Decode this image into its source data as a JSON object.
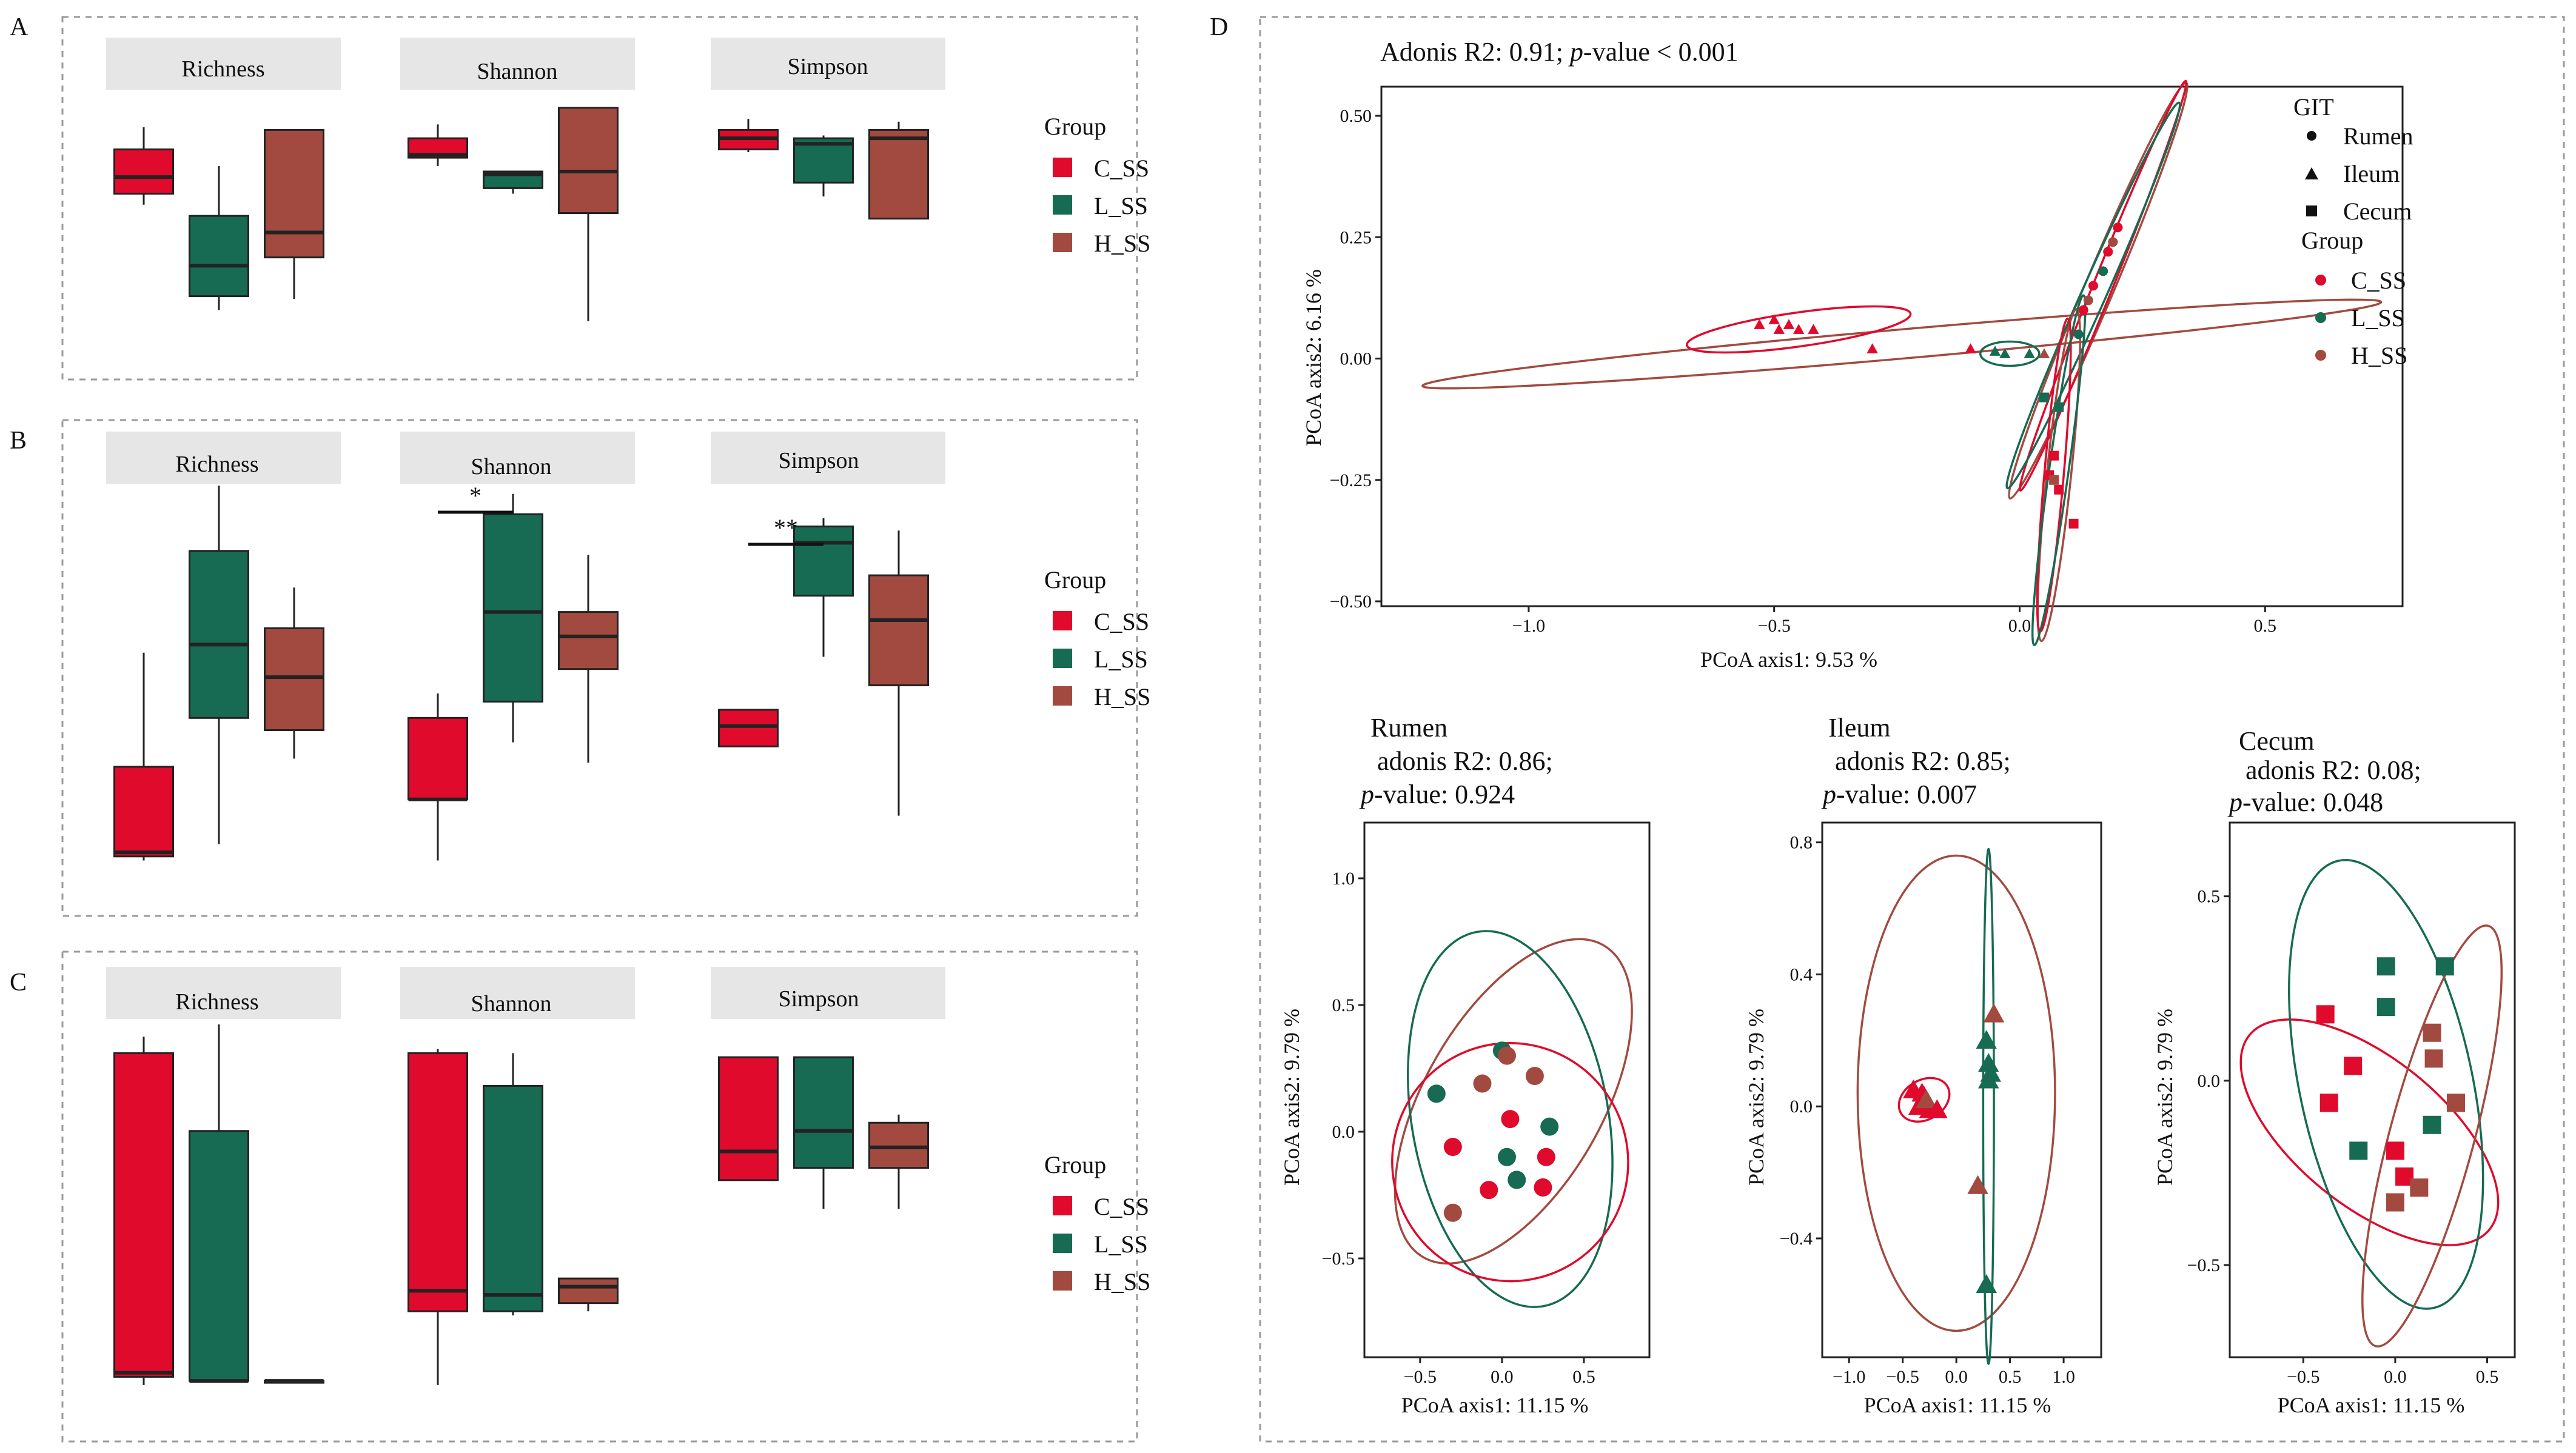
{
  "colors": {
    "C_SS": "#df0a2c",
    "L_SS": "#166b52",
    "H_SS": "#a24a40",
    "strip": "#e6e6e6",
    "frame": "#9a9a9a"
  },
  "panel_labels": [
    "A",
    "B",
    "C",
    "D"
  ],
  "legend": {
    "title": "Group",
    "groups": [
      "C_SS",
      "L_SS",
      "H_SS"
    ],
    "git_title": "GIT",
    "git": [
      "Rumen",
      "Ileum",
      "Cecum"
    ]
  },
  "chart_data": [
    {
      "type": "box",
      "panel": "A",
      "facets": [
        "Richness",
        "Shannon",
        "Simpson"
      ],
      "groups": [
        "C_SS",
        "L_SS",
        "H_SS"
      ],
      "note": "values in relative (unlabeled) axis units, 0 = bottom, 100 = top of facet",
      "boxes": [
        [
          {
            "min": 60,
            "q1": 64,
            "med": 70,
            "q3": 80,
            "max": 88
          },
          {
            "min": 22,
            "q1": 27,
            "med": 38,
            "q3": 56,
            "max": 74
          },
          {
            "min": 26,
            "q1": 41,
            "med": 50,
            "q3": 87,
            "max": 87
          }
        ],
        [
          {
            "min": 74,
            "q1": 77,
            "med": 78,
            "q3": 84,
            "max": 89
          },
          {
            "min": 64,
            "q1": 66,
            "med": 71,
            "q3": 72,
            "max": 72
          },
          {
            "min": 18,
            "q1": 57,
            "med": 72,
            "q3": 95,
            "max": 95
          }
        ],
        [
          {
            "min": 79,
            "q1": 80,
            "med": 84,
            "q3": 87,
            "max": 91
          },
          {
            "min": 63,
            "q1": 68,
            "med": 82,
            "q3": 84,
            "max": 85
          },
          {
            "min": 55,
            "q1": 55,
            "med": 84,
            "q3": 87,
            "max": 90
          }
        ]
      ],
      "significance": []
    },
    {
      "type": "box",
      "panel": "B",
      "facets": [
        "Richness",
        "Shannon",
        "Simpson"
      ],
      "groups": [
        "C_SS",
        "L_SS",
        "H_SS"
      ],
      "note": "values in relative (unlabeled) axis units, 0 = bottom, 100 = top of facet",
      "boxes": [
        [
          {
            "min": 9,
            "q1": 10,
            "med": 11,
            "q3": 32,
            "max": 60
          },
          {
            "min": 13,
            "q1": 44,
            "med": 62,
            "q3": 85,
            "max": 101
          },
          {
            "min": 34,
            "q1": 41,
            "med": 54,
            "q3": 66,
            "max": 76
          }
        ],
        [
          {
            "min": 9,
            "q1": 24,
            "med": 24,
            "q3": 44,
            "max": 50
          },
          {
            "min": 38,
            "q1": 48,
            "med": 70,
            "q3": 94,
            "max": 99
          },
          {
            "min": 33,
            "q1": 56,
            "med": 64,
            "q3": 70,
            "max": 84
          }
        ],
        [
          {
            "min": null,
            "q1": 37,
            "med": 42,
            "q3": 46,
            "max": null
          },
          {
            "min": 59,
            "q1": 74,
            "med": 87,
            "q3": 91,
            "max": 93
          },
          {
            "min": 20,
            "q1": 52,
            "med": 68,
            "q3": 79,
            "max": 90
          }
        ]
      ],
      "significance": [
        {
          "facet": "Shannon",
          "groups": [
            "C_SS",
            "L_SS"
          ],
          "label": "*"
        },
        {
          "facet": "Simpson",
          "groups": [
            "C_SS",
            "L_SS"
          ],
          "label": "**"
        }
      ]
    },
    {
      "type": "box",
      "panel": "C",
      "facets": [
        "Richness",
        "Shannon",
        "Simpson"
      ],
      "groups": [
        "C_SS",
        "L_SS",
        "H_SS"
      ],
      "note": "values in relative (unlabeled) axis units, 0 = bottom, 100 = top of facet",
      "boxes": [
        [
          {
            "min": 12,
            "q1": 14,
            "med": 15,
            "q3": 93,
            "max": 97
          },
          {
            "min": 13,
            "q1": 13,
            "med": 13,
            "q3": 74,
            "max": 100
          },
          {
            "min": 13,
            "q1": 13,
            "med": 13,
            "q3": 13,
            "max": 13
          }
        ],
        [
          {
            "min": 12,
            "q1": 30,
            "med": 35,
            "q3": 93,
            "max": 94
          },
          {
            "min": 29,
            "q1": 30,
            "med": 34,
            "q3": 85,
            "max": 93
          },
          {
            "min": 30,
            "q1": 32,
            "med": 36,
            "q3": 38,
            "max": 38
          }
        ],
        [
          {
            "min": null,
            "q1": 62,
            "med": 69,
            "q3": 92,
            "max": 93
          },
          {
            "min": 55,
            "q1": 65,
            "med": 74,
            "q3": 92,
            "max": 92
          },
          {
            "min": 55,
            "q1": 65,
            "med": 70,
            "q3": 76,
            "max": 78
          }
        ]
      ],
      "significance": []
    },
    {
      "type": "scatter",
      "panel": "D",
      "title": "Adonis R2: 0.91; p-value < 0.001",
      "title_parts": {
        "prefix": "Adonis R2: 0.91; ",
        "p": "p",
        "suffix": "-value < 0.001"
      },
      "xlabel": "PCoA axis1:  9.53 %",
      "ylabel": "PCoA axis2:  6.16 %",
      "xlim": [
        -1.3,
        0.78
      ],
      "ylim": [
        -0.51,
        0.56
      ],
      "xticks": [
        -1.0,
        -0.5,
        0.0,
        0.5
      ],
      "xtick_labels": [
        "−1.0",
        "−0.5",
        "0.0",
        "0.5"
      ],
      "yticks": [
        0.5,
        0.25,
        0.0,
        -0.25,
        -0.5
      ],
      "ytick_labels": [
        "0.50",
        "0.25",
        "0.00",
        "−0.25",
        "−0.50"
      ],
      "points": [
        {
          "x": -0.5,
          "y": 0.08,
          "g": "C_SS",
          "s": "tri"
        },
        {
          "x": -0.47,
          "y": 0.07,
          "g": "C_SS",
          "s": "tri"
        },
        {
          "x": -0.53,
          "y": 0.07,
          "g": "C_SS",
          "s": "tri"
        },
        {
          "x": -0.45,
          "y": 0.06,
          "g": "C_SS",
          "s": "tri"
        },
        {
          "x": -0.42,
          "y": 0.06,
          "g": "C_SS",
          "s": "tri"
        },
        {
          "x": -0.49,
          "y": 0.06,
          "g": "C_SS",
          "s": "tri"
        },
        {
          "x": -0.3,
          "y": 0.02,
          "g": "C_SS",
          "s": "tri"
        },
        {
          "x": -0.1,
          "y": 0.02,
          "g": "C_SS",
          "s": "tri"
        },
        {
          "x": -0.05,
          "y": 0.015,
          "g": "L_SS",
          "s": "tri"
        },
        {
          "x": -0.03,
          "y": 0.01,
          "g": "L_SS",
          "s": "tri"
        },
        {
          "x": 0.02,
          "y": 0.01,
          "g": "L_SS",
          "s": "tri"
        },
        {
          "x": 0.05,
          "y": 0.01,
          "g": "H_SS",
          "s": "tri"
        },
        {
          "x": 0.2,
          "y": 0.27,
          "g": "C_SS",
          "s": "cir"
        },
        {
          "x": 0.18,
          "y": 0.22,
          "g": "C_SS",
          "s": "cir"
        },
        {
          "x": 0.15,
          "y": 0.15,
          "g": "C_SS",
          "s": "cir"
        },
        {
          "x": 0.13,
          "y": 0.1,
          "g": "C_SS",
          "s": "cir"
        },
        {
          "x": 0.17,
          "y": 0.18,
          "g": "L_SS",
          "s": "cir"
        },
        {
          "x": 0.12,
          "y": 0.05,
          "g": "L_SS",
          "s": "cir"
        },
        {
          "x": 0.19,
          "y": 0.24,
          "g": "H_SS",
          "s": "cir"
        },
        {
          "x": 0.14,
          "y": 0.12,
          "g": "H_SS",
          "s": "cir"
        },
        {
          "x": 0.07,
          "y": -0.2,
          "g": "C_SS",
          "s": "sq"
        },
        {
          "x": 0.06,
          "y": -0.24,
          "g": "C_SS",
          "s": "sq"
        },
        {
          "x": 0.08,
          "y": -0.27,
          "g": "C_SS",
          "s": "sq"
        },
        {
          "x": 0.11,
          "y": -0.34,
          "g": "C_SS",
          "s": "sq"
        },
        {
          "x": 0.07,
          "y": -0.25,
          "g": "H_SS",
          "s": "sq"
        },
        {
          "x": 0.05,
          "y": -0.08,
          "g": "L_SS",
          "s": "sq"
        },
        {
          "x": 0.08,
          "y": -0.1,
          "g": "L_SS",
          "s": "sq"
        }
      ],
      "ellipses": [
        {
          "g": "H_SS",
          "cx": -0.24,
          "cy": 0.03,
          "rx": 0.98,
          "ry": 0.03,
          "angle": -5
        },
        {
          "g": "C_SS",
          "cx": -0.45,
          "cy": 0.06,
          "rx": 0.23,
          "ry": 0.035,
          "angle": -8
        },
        {
          "g": "L_SS",
          "cx": -0.02,
          "cy": 0.01,
          "rx": 0.06,
          "ry": 0.025,
          "angle": 0
        },
        {
          "g": "H_SS",
          "cx": 0.16,
          "cy": 0.14,
          "rx": 0.46,
          "ry": 0.03,
          "angle": -67
        },
        {
          "g": "C_SS",
          "cx": 0.17,
          "cy": 0.15,
          "rx": 0.45,
          "ry": 0.02,
          "angle": -68
        },
        {
          "g": "L_SS",
          "cx": 0.15,
          "cy": 0.13,
          "rx": 0.43,
          "ry": 0.025,
          "angle": -66
        },
        {
          "g": "H_SS",
          "cx": 0.08,
          "cy": -0.24,
          "rx": 0.34,
          "ry": 0.025,
          "angle": -84
        },
        {
          "g": "C_SS",
          "cx": 0.07,
          "cy": -0.24,
          "rx": 0.32,
          "ry": 0.02,
          "angle": -85
        },
        {
          "g": "L_SS",
          "cx": 0.08,
          "cy": -0.23,
          "rx": 0.36,
          "ry": 0.02,
          "angle": -82
        }
      ]
    },
    {
      "type": "scatter",
      "panel": "D",
      "subplot": "Rumen",
      "title_lines": [
        "Rumen",
        " adonis R2: 0.86;"
      ],
      "pline": {
        "p": "p",
        "rest": "-value: 0.924"
      },
      "shape": "cir",
      "xlabel": "PCoA axis1:  11.15 %",
      "ylabel": "PCoA axis2:  9.79 %",
      "xlim": [
        -0.84,
        0.9
      ],
      "ylim": [
        -0.89,
        1.22
      ],
      "xticks": [
        -0.5,
        0.0,
        0.5
      ],
      "xtick_labels": [
        "−0.5",
        "0.0",
        "0.5"
      ],
      "yticks": [
        1.0,
        0.5,
        0.0,
        -0.5
      ],
      "ytick_labels": [
        "1.0",
        "0.5",
        "0.0",
        "−0.5"
      ],
      "points": [
        {
          "x": 0.0,
          "y": 0.32,
          "g": "L_SS"
        },
        {
          "x": 0.03,
          "y": 0.3,
          "g": "H_SS"
        },
        {
          "x": -0.4,
          "y": 0.15,
          "g": "L_SS"
        },
        {
          "x": -0.12,
          "y": 0.19,
          "g": "H_SS"
        },
        {
          "x": 0.2,
          "y": 0.22,
          "g": "H_SS"
        },
        {
          "x": 0.05,
          "y": 0.05,
          "g": "C_SS"
        },
        {
          "x": 0.29,
          "y": 0.02,
          "g": "L_SS"
        },
        {
          "x": -0.3,
          "y": -0.06,
          "g": "C_SS"
        },
        {
          "x": 0.03,
          "y": -0.1,
          "g": "L_SS"
        },
        {
          "x": 0.27,
          "y": -0.1,
          "g": "C_SS"
        },
        {
          "x": -0.08,
          "y": -0.23,
          "g": "C_SS"
        },
        {
          "x": 0.09,
          "y": -0.19,
          "g": "L_SS"
        },
        {
          "x": 0.25,
          "y": -0.22,
          "g": "C_SS"
        },
        {
          "x": -0.3,
          "y": -0.32,
          "g": "H_SS"
        }
      ],
      "ellipses": [
        {
          "g": "H_SS",
          "cx": 0.07,
          "cy": 0.12,
          "rx": 1.1,
          "ry": 0.35,
          "angle": -60
        },
        {
          "g": "L_SS",
          "cx": 0.05,
          "cy": 0.05,
          "rx": 0.6,
          "ry": 0.75,
          "angle": -10
        },
        {
          "g": "C_SS",
          "cx": 0.05,
          "cy": -0.12,
          "rx": 0.72,
          "ry": 0.47,
          "angle": -10
        }
      ]
    },
    {
      "type": "scatter",
      "panel": "D",
      "subplot": "Ileum",
      "title_lines": [
        "Ileum",
        " adonis R2: 0.85;"
      ],
      "pline": {
        "p": "p",
        "rest": "-value: 0.007"
      },
      "shape": "tri",
      "xlabel": "PCoA axis1:  11.15 %",
      "ylabel": "PCoA axis2:  9.79 %",
      "xlim": [
        -1.25,
        1.35
      ],
      "ylim": [
        -0.76,
        0.86
      ],
      "xticks": [
        -1.0,
        -0.5,
        0.0,
        0.5,
        1.0
      ],
      "xtick_labels": [
        "−1.0",
        "−0.5",
        "0.0",
        "0.5",
        "1.0"
      ],
      "yticks": [
        0.8,
        0.4,
        0.0,
        -0.4
      ],
      "ytick_labels": [
        "0.8",
        "0.4",
        "0.0",
        "−0.4"
      ],
      "points": [
        {
          "x": -0.4,
          "y": 0.05,
          "g": "C_SS"
        },
        {
          "x": -0.3,
          "y": 0.03,
          "g": "C_SS"
        },
        {
          "x": -0.35,
          "y": 0.0,
          "g": "C_SS"
        },
        {
          "x": -0.25,
          "y": -0.01,
          "g": "C_SS"
        },
        {
          "x": -0.32,
          "y": 0.04,
          "g": "C_SS"
        },
        {
          "x": -0.28,
          "y": 0.02,
          "g": "H_SS"
        },
        {
          "x": -0.18,
          "y": -0.01,
          "g": "C_SS"
        },
        {
          "x": 0.35,
          "y": 0.28,
          "g": "H_SS"
        },
        {
          "x": 0.28,
          "y": 0.2,
          "g": "L_SS"
        },
        {
          "x": 0.3,
          "y": 0.13,
          "g": "L_SS"
        },
        {
          "x": 0.3,
          "y": 0.08,
          "g": "L_SS"
        },
        {
          "x": 0.32,
          "y": 0.1,
          "g": "L_SS"
        },
        {
          "x": 0.2,
          "y": -0.24,
          "g": "H_SS"
        },
        {
          "x": 0.28,
          "y": -0.54,
          "g": "L_SS"
        }
      ],
      "ellipses": [
        {
          "g": "H_SS",
          "cx": 0.0,
          "cy": 0.04,
          "rx": 0.92,
          "ry": 0.72,
          "angle": 0
        },
        {
          "g": "L_SS",
          "cx": 0.3,
          "cy": 0.0,
          "rx": 0.05,
          "ry": 0.78,
          "angle": 0
        },
        {
          "g": "C_SS",
          "cx": -0.3,
          "cy": 0.02,
          "rx": 0.25,
          "ry": 0.06,
          "angle": -30
        }
      ]
    },
    {
      "type": "scatter",
      "panel": "D",
      "subplot": "Cecum",
      "title_lines": [
        "Cecum",
        " adonis R2: 0.08;"
      ],
      "pline": {
        "p": "p",
        "rest": "-value: 0.048"
      },
      "shape": "sq",
      "xlabel": "PCoA axis1:  11.15 %",
      "ylabel": "PCoA axis2:  9.79 %",
      "xlim": [
        -0.9,
        0.65
      ],
      "ylim": [
        -0.75,
        0.7
      ],
      "xticks": [
        -0.5,
        0.0,
        0.5
      ],
      "xtick_labels": [
        "−0.5",
        "0.0",
        "0.5"
      ],
      "yticks": [
        0.5,
        0.0,
        -0.5
      ],
      "ytick_labels": [
        "0.5",
        "0.0",
        "−0.5"
      ],
      "points": [
        {
          "x": -0.05,
          "y": 0.31,
          "g": "L_SS"
        },
        {
          "x": 0.27,
          "y": 0.31,
          "g": "L_SS"
        },
        {
          "x": -0.05,
          "y": 0.2,
          "g": "L_SS"
        },
        {
          "x": -0.38,
          "y": 0.18,
          "g": "C_SS"
        },
        {
          "x": -0.23,
          "y": 0.04,
          "g": "C_SS"
        },
        {
          "x": 0.2,
          "y": 0.13,
          "g": "H_SS"
        },
        {
          "x": 0.21,
          "y": 0.06,
          "g": "H_SS"
        },
        {
          "x": -0.36,
          "y": -0.06,
          "g": "C_SS"
        },
        {
          "x": 0.33,
          "y": -0.06,
          "g": "H_SS"
        },
        {
          "x": 0.2,
          "y": -0.12,
          "g": "L_SS"
        },
        {
          "x": -0.2,
          "y": -0.19,
          "g": "L_SS"
        },
        {
          "x": 0.0,
          "y": -0.19,
          "g": "C_SS"
        },
        {
          "x": 0.05,
          "y": -0.26,
          "g": "C_SS"
        },
        {
          "x": 0.13,
          "y": -0.29,
          "g": "H_SS"
        },
        {
          "x": 0.0,
          "y": -0.33,
          "g": "H_SS"
        }
      ],
      "ellipses": [
        {
          "g": "C_SS",
          "cx": -0.14,
          "cy": -0.14,
          "rx": 0.84,
          "ry": 0.2,
          "angle": 39
        },
        {
          "g": "L_SS",
          "cx": -0.05,
          "cy": -0.01,
          "rx": 0.47,
          "ry": 0.62,
          "angle": -12
        },
        {
          "g": "H_SS",
          "cx": 0.2,
          "cy": -0.15,
          "rx": 0.23,
          "ry": 0.59,
          "angle": 15
        }
      ]
    }
  ]
}
